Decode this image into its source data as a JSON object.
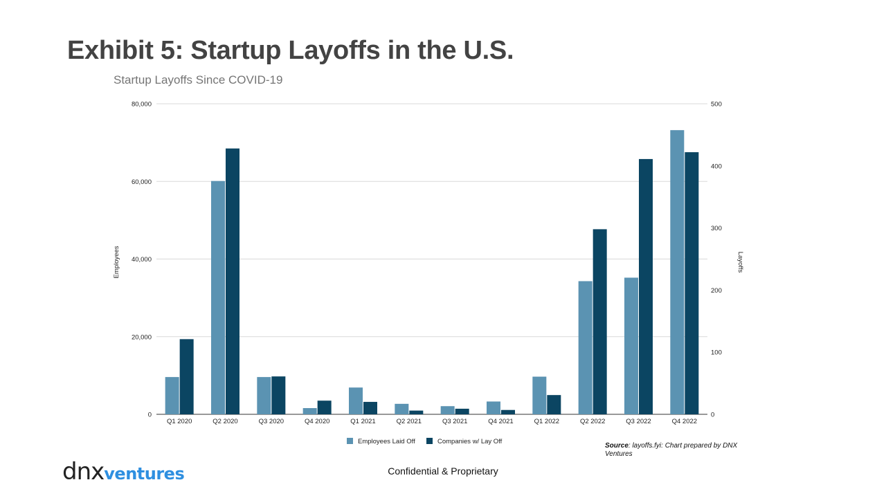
{
  "slide": {
    "title": "Exhibit 5: Startup Layoffs in the U.S.",
    "source_label": "Source",
    "source_text": ": layoffs.fyi: Chart prepared by DNX Ventures",
    "footer": "Confidential & Proprietary",
    "logo_primary": "dnx",
    "logo_secondary": "ventures",
    "colors": {
      "employees": "#5b93b2",
      "companies": "#0b4562",
      "logo_accent": "#2e8fe0",
      "title": "#434343"
    }
  },
  "chart_data": {
    "type": "bar",
    "title": "Startup Layoffs Since COVID-19",
    "categories": [
      "Q1 2020",
      "Q2 2020",
      "Q3 2020",
      "Q4 2020",
      "Q1 2021",
      "Q2 2021",
      "Q3 2021",
      "Q4 2021",
      "Q1 2022",
      "Q2 2022",
      "Q3 2022",
      "Q4 2022"
    ],
    "series": [
      {
        "name": "Employees Laid Off",
        "axis": "left",
        "color": "#5b93b2",
        "values": [
          9600,
          60100,
          9600,
          1600,
          6900,
          2700,
          2100,
          3300,
          9700,
          34300,
          35200,
          73200
        ]
      },
      {
        "name": "Companies w/  Lay Off",
        "axis": "right",
        "color": "#0b4562",
        "values": [
          121,
          428,
          61,
          22,
          20,
          6,
          9,
          7,
          31,
          298,
          411,
          422
        ]
      }
    ],
    "ylabel": "Employees",
    "ylabel_right": "Layoffs",
    "ylim": [
      0,
      80000
    ],
    "ylim_right": [
      0,
      500
    ],
    "yticks": [
      "0",
      "20,000",
      "40,000",
      "60,000",
      "80,000"
    ],
    "yticks_right": [
      "0",
      "100",
      "200",
      "300",
      "400",
      "500"
    ],
    "legend_position": "bottom",
    "grid": true
  }
}
